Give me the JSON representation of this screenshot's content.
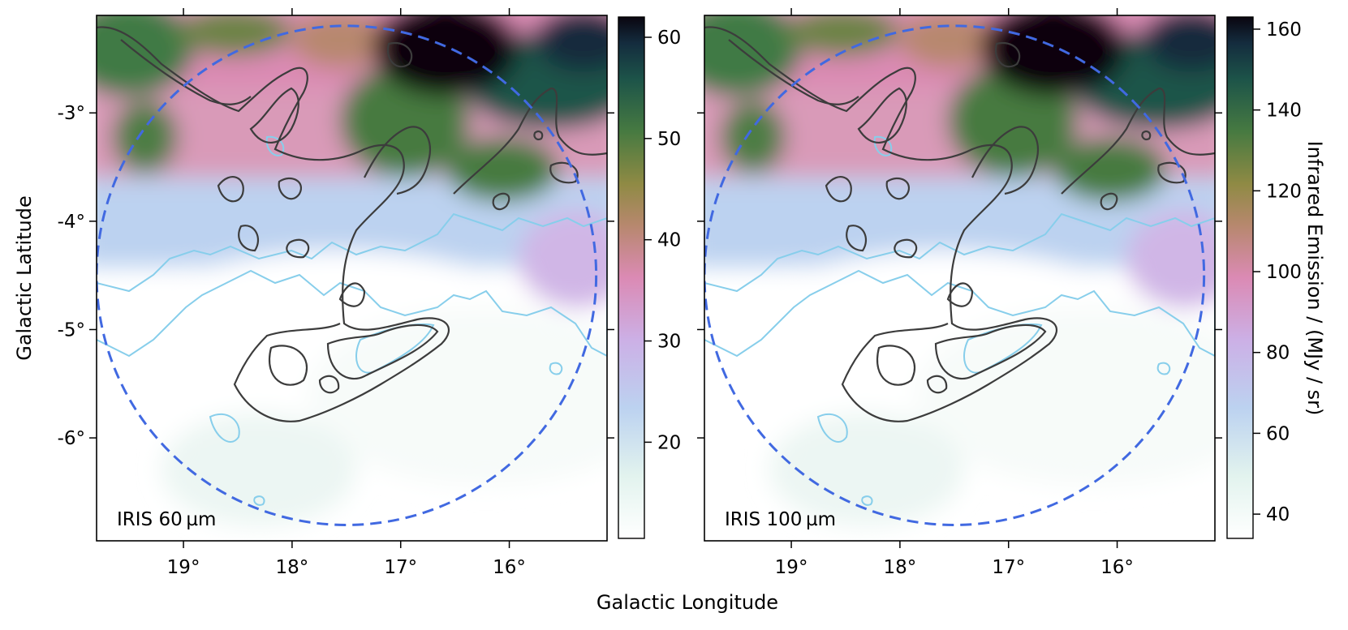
{
  "figure": {
    "xlabel": "Galactic Longitude",
    "ylabel": "Galactic Latitude",
    "colorbar_label": "Infrared Emission / (MJy / sr)"
  },
  "chart_data": [
    {
      "type": "heatmap",
      "panel_label": "IRIS 60 µm",
      "xlabel": "Galactic Longitude",
      "ylabel": "Galactic Latitude",
      "xlim": [
        19.8,
        15.1
      ],
      "ylim": [
        -6.95,
        -2.1
      ],
      "x_ticks": [
        19,
        18,
        17,
        16
      ],
      "x_tick_labels": [
        "19°",
        "18°",
        "17°",
        "16°"
      ],
      "y_ticks": [
        -3,
        -4,
        -5,
        -6
      ],
      "y_tick_labels": [
        "-3°",
        "-4°",
        "-5°",
        "-6°"
      ],
      "colormap": "cubehelix_r",
      "colorbar": {
        "range": [
          10.5,
          62
        ],
        "ticks": [
          20,
          30,
          40,
          50,
          60
        ],
        "tick_labels": [
          "20",
          "30",
          "40",
          "50",
          "60"
        ]
      },
      "circle": {
        "center": [
          17.5,
          -4.5
        ],
        "radius_deg": 2.3,
        "color": "#4169e1",
        "style": "dashed"
      },
      "contours": {
        "color": "#3c3c3c",
        "levels": 2
      },
      "mask_outline_color": "#87ceeb"
    },
    {
      "type": "heatmap",
      "panel_label": "IRIS 100 µm",
      "xlabel": "Galactic Longitude",
      "ylabel": "Galactic Latitude",
      "xlim": [
        19.8,
        15.1
      ],
      "ylim": [
        -6.95,
        -2.1
      ],
      "x_ticks": [
        19,
        18,
        17,
        16
      ],
      "x_tick_labels": [
        "19°",
        "18°",
        "17°",
        "16°"
      ],
      "y_ticks": [
        -3,
        -4,
        -5,
        -6
      ],
      "colormap": "cubehelix_r",
      "colorbar": {
        "range": [
          34,
          163
        ],
        "ticks": [
          40,
          60,
          80,
          100,
          120,
          140,
          160
        ],
        "tick_labels": [
          "40",
          "60",
          "80",
          "100",
          "120",
          "140",
          "160"
        ],
        "label": "Infrared Emission / (MJy / sr)"
      },
      "circle": {
        "center": [
          17.5,
          -4.5
        ],
        "radius_deg": 2.3,
        "color": "#4169e1",
        "style": "dashed"
      },
      "contours": {
        "color": "#3c3c3c",
        "levels": 2
      },
      "mask_outline_color": "#87ceeb"
    }
  ]
}
